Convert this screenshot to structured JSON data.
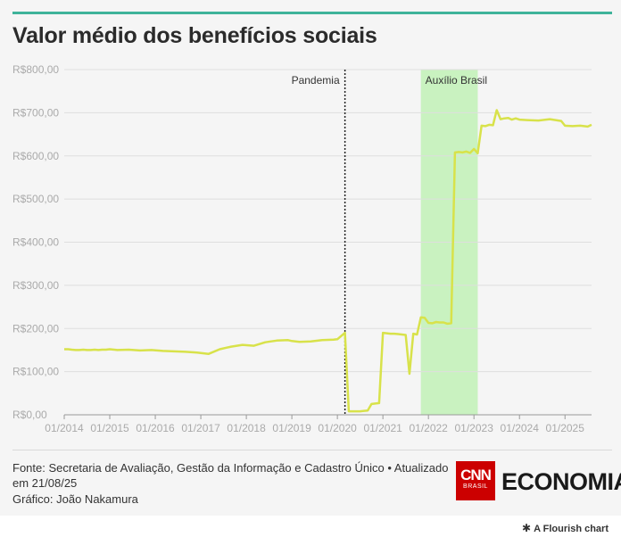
{
  "title": "Valor médio dos benefícios sociais",
  "footer": {
    "source": "Fonte: Secretaria de Avaliação, Gestão da Informação e Cadastro Único • Atualizado em 21/08/25",
    "credit": "Gráfico: João Nakamura",
    "cnn_logo_text": "CNN",
    "cnn_logo_sub": "BRASIL",
    "economia_logo_text": "ECONOMIA",
    "flourish_credit": "A Flourish chart"
  },
  "colors": {
    "line": "#d8e24a",
    "highlight": "#c9f2c0",
    "accent": "#3fb39a"
  },
  "chart_data": {
    "type": "line",
    "title": "Valor médio dos benefícios sociais",
    "xlabel": "",
    "ylabel": "",
    "ylim": [
      0,
      800
    ],
    "yticks": [
      0,
      100,
      200,
      300,
      400,
      500,
      600,
      700,
      800
    ],
    "ytick_labels": [
      "R$0,00",
      "R$100,00",
      "R$200,00",
      "R$300,00",
      "R$400,00",
      "R$500,00",
      "R$600,00",
      "R$700,00",
      "R$800,00"
    ],
    "xlim": [
      "2014-01",
      "2025-08"
    ],
    "xticks": [
      "2014-01",
      "2015-01",
      "2016-01",
      "2017-01",
      "2018-01",
      "2019-01",
      "2020-01",
      "2021-01",
      "2022-01",
      "2023-01",
      "2024-01",
      "2025-01"
    ],
    "xtick_labels": [
      "01/2014",
      "01/2015",
      "01/2016",
      "01/2017",
      "01/2018",
      "01/2019",
      "01/2020",
      "01/2021",
      "01/2022",
      "01/2023",
      "01/2024",
      "01/2025"
    ],
    "grid": "horizontal",
    "annotations": [
      {
        "type": "vline",
        "x": "2020-03",
        "label": "Pandemia",
        "style": "dotted"
      },
      {
        "type": "band",
        "x_start": "2021-11",
        "x_end": "2023-02",
        "label": "Auxílio Brasil"
      }
    ],
    "series": [
      {
        "x": [
          "2014-01",
          "2014-02",
          "2014-03",
          "2014-04",
          "2014-05",
          "2014-06",
          "2014-07",
          "2014-08",
          "2014-09",
          "2014-10",
          "2014-11",
          "2014-12",
          "2015-01",
          "2015-03",
          "2015-06",
          "2015-09",
          "2015-12",
          "2016-03",
          "2016-06",
          "2016-09",
          "2016-12",
          "2017-01",
          "2017-03",
          "2017-06",
          "2017-09",
          "2017-12",
          "2018-03",
          "2018-06",
          "2018-09",
          "2018-12",
          "2019-01",
          "2019-03",
          "2019-06",
          "2019-09",
          "2019-12",
          "2020-01",
          "2020-03",
          "2020-04",
          "2020-05",
          "2020-06",
          "2020-07",
          "2020-08",
          "2020-09",
          "2020-10",
          "2020-11",
          "2020-12",
          "2021-01",
          "2021-02",
          "2021-03",
          "2021-04",
          "2021-05",
          "2021-06",
          "2021-07",
          "2021-08",
          "2021-09",
          "2021-10",
          "2021-11",
          "2021-12",
          "2022-01",
          "2022-02",
          "2022-03",
          "2022-04",
          "2022-05",
          "2022-06",
          "2022-07",
          "2022-08",
          "2022-09",
          "2022-10",
          "2022-11",
          "2022-12",
          "2023-01",
          "2023-02",
          "2023-03",
          "2023-04",
          "2023-05",
          "2023-06",
          "2023-07",
          "2023-08",
          "2023-09",
          "2023-10",
          "2023-11",
          "2023-12",
          "2024-01",
          "2024-03",
          "2024-06",
          "2024-09",
          "2024-12",
          "2025-01",
          "2025-03",
          "2025-05",
          "2025-07",
          "2025-08"
        ],
        "values": [
          152,
          152,
          151,
          150,
          150,
          151,
          150,
          150,
          151,
          150,
          151,
          151,
          152,
          150,
          151,
          149,
          150,
          148,
          147,
          146,
          144,
          143,
          141,
          152,
          158,
          162,
          160,
          168,
          172,
          173,
          171,
          169,
          170,
          173,
          174,
          175,
          190,
          8,
          8,
          8,
          8,
          9,
          10,
          25,
          26,
          27,
          190,
          189,
          188,
          188,
          187,
          186,
          185,
          95,
          188,
          186,
          226,
          225,
          213,
          212,
          215,
          214,
          214,
          211,
          212,
          608,
          609,
          608,
          610,
          607,
          616,
          606,
          670,
          669,
          672,
          671,
          706,
          685,
          687,
          688,
          684,
          687,
          684,
          683,
          682,
          685,
          681,
          670,
          669,
          670,
          668,
          672
        ]
      }
    ]
  }
}
